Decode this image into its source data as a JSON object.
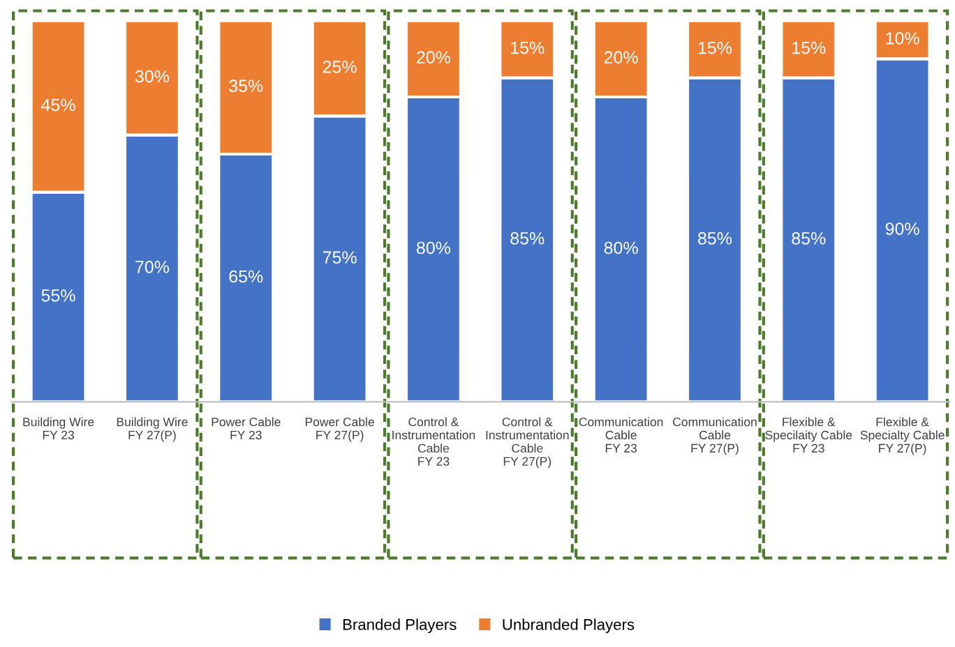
{
  "chart_data": {
    "type": "bar",
    "stacked": true,
    "categories": [
      "Building Wire\nFY 23",
      "Building Wire\nFY 27(P)",
      "Power Cable\nFY 23",
      "Power Cable\nFY 27(P)",
      "Control &\nInstrumentation\nCable\nFY 23",
      "Control &\nInstrumentation\nCable\nFY 27(P)",
      "Communication\nCable\nFY 23",
      "Communication\nCable\nFY 27(P)",
      "Flexible &\nSpecilaity Cable\nFY 23",
      "Flexible &\nSpecialty Cable\nFY 27(P)"
    ],
    "series": [
      {
        "name": "Branded Players",
        "color": "#4472c4",
        "values": [
          55,
          70,
          65,
          75,
          80,
          85,
          80,
          85,
          85,
          90
        ],
        "value_labels": [
          "55%",
          "70%",
          "65%",
          "75%",
          "80%",
          "85%",
          "80%",
          "85%",
          "85%",
          "90%"
        ]
      },
      {
        "name": "Unbranded Players",
        "color": "#ed7d31",
        "values": [
          45,
          30,
          35,
          25,
          20,
          15,
          20,
          15,
          15,
          10
        ],
        "value_labels": [
          "45%",
          "30%",
          "35%",
          "25%",
          "20%",
          "15%",
          "20%",
          "15%",
          "15%",
          "10%"
        ]
      }
    ],
    "legend": "bottom"
  }
}
